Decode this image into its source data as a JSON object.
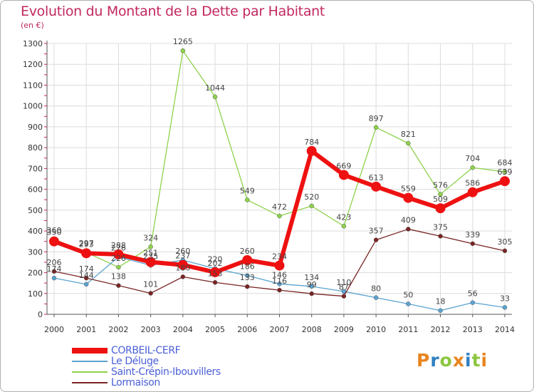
{
  "header": {
    "title": "Evolution du Montant de la Dette par Habitant",
    "unit": "(en €)"
  },
  "logo": {
    "text": "Proxiti",
    "colors": [
      "#e8851e",
      "#2f7fc1",
      "#8cc63f",
      "#e8851e",
      "#2f7fc1",
      "#8cc63f",
      "#e8851e"
    ]
  },
  "chart_data": {
    "type": "line",
    "title": "Evolution du Montant de la Dette par Habitant",
    "subtitle": "(en €)",
    "xlabel": "",
    "ylabel": "",
    "x": [
      "2000",
      "2001",
      "2002",
      "2003",
      "2004",
      "2005",
      "2006",
      "2007",
      "2008",
      "2009",
      "2010",
      "2011",
      "2012",
      "2013",
      "2014"
    ],
    "ylim": [
      0,
      1300
    ],
    "yticks": [
      0,
      100,
      200,
      300,
      400,
      500,
      600,
      700,
      800,
      900,
      1000,
      1100,
      1200,
      1300
    ],
    "grid": true,
    "legend_position": "bottom-left",
    "series": [
      {
        "name": "CORBEIL-CERF",
        "color": "#ee1111",
        "values": [
          350,
          293,
          288,
          251,
          237,
          202,
          260,
          234,
          784,
          669,
          613,
          559,
          509,
          586,
          639
        ]
      },
      {
        "name": "Le Déluge",
        "color": "#5ba3d0",
        "values": [
          174,
          144,
          276,
          235,
          260,
          220,
          186,
          146,
          134,
          110,
          80,
          50,
          18,
          56,
          33
        ]
      },
      {
        "name": "Saint-Crépin-Ibouvillers",
        "color": "#8ed24b",
        "values": [
          360,
          297,
          226,
          324,
          1265,
          1044,
          549,
          472,
          520,
          423,
          897,
          821,
          576,
          704,
          684
        ]
      },
      {
        "name": "Lormaison",
        "color": "#7a2424",
        "values": [
          206,
          174,
          138,
          101,
          180,
          153,
          133,
          116,
          99,
          87,
          357,
          409,
          375,
          339,
          305
        ]
      }
    ],
    "data_labels": [
      [
        "350",
        "293",
        "288",
        "251",
        "237",
        "202",
        "260",
        "234",
        "784",
        "669",
        "613",
        "559",
        "509",
        "586",
        "639"
      ],
      [
        "174",
        "144",
        "276",
        "235",
        "260",
        "220",
        "186",
        "146",
        "134",
        "110",
        "80",
        "50",
        "18",
        "56",
        "33"
      ],
      [
        "360",
        "297",
        "226",
        "324",
        "1265",
        "1044",
        "549",
        "472",
        "520",
        "423",
        "897",
        "821",
        "576",
        "704",
        "684"
      ],
      [
        "206",
        "174",
        "138",
        "101",
        "180",
        "153",
        "133",
        "116",
        "99",
        "87",
        "357",
        "409",
        "375",
        "339",
        "305"
      ]
    ]
  }
}
